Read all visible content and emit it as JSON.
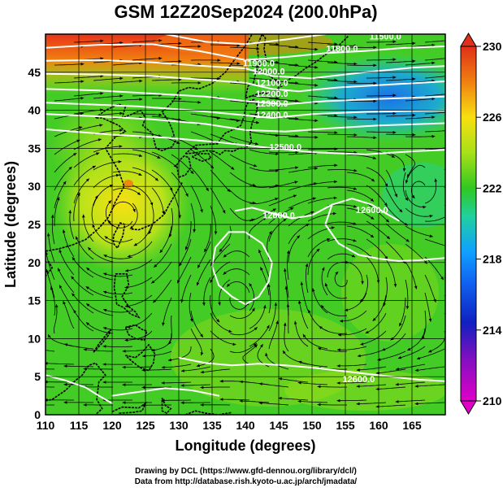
{
  "title": "GSM 12Z20Sep2024 (200.0hPa)",
  "x_axis": {
    "label": "Longitude (degrees)",
    "range": [
      110,
      170
    ],
    "ticks": [
      "110",
      "115",
      "120",
      "125",
      "130",
      "135",
      "140",
      "145",
      "150",
      "155",
      "160",
      "165"
    ]
  },
  "y_axis": {
    "label": "Latitude  (degrees)",
    "range": [
      0,
      50
    ],
    "ticks": [
      "0",
      "5",
      "10",
      "15",
      "20",
      "25",
      "30",
      "35",
      "40",
      "45"
    ]
  },
  "colorbar": {
    "range": [
      210,
      230
    ],
    "ticks": [
      "210",
      "214",
      "218",
      "222",
      "226",
      "230"
    ],
    "colors": [
      "#e000c8",
      "#1020c0",
      "#10a0ff",
      "#20d0a0",
      "#30c820",
      "#a8e018",
      "#f8e010",
      "#f08010",
      "#e03018"
    ]
  },
  "contour_labels": [
    {
      "text": "11500.0",
      "lon": 161,
      "lat": 49.3
    },
    {
      "text": "11800.0",
      "lon": 154.5,
      "lat": 47.7
    },
    {
      "text": "11900.0",
      "lon": 142,
      "lat": 45.8
    },
    {
      "text": "12000.0",
      "lon": 143.5,
      "lat": 44.7
    },
    {
      "text": "12100.0",
      "lon": 144,
      "lat": 43.2
    },
    {
      "text": "12200.0",
      "lon": 144,
      "lat": 41.8
    },
    {
      "text": "12300.0",
      "lon": 144,
      "lat": 40.5
    },
    {
      "text": "12400.0",
      "lon": 144,
      "lat": 39
    },
    {
      "text": "12500.0",
      "lon": 146,
      "lat": 34.8
    },
    {
      "text": "12600.0",
      "lon": 145,
      "lat": 25.8
    },
    {
      "text": "12600.0",
      "lon": 159,
      "lat": 26.5
    },
    {
      "text": "12600.0",
      "lon": 157,
      "lat": 4.3
    }
  ],
  "credits": [
    "Drawing by DCL (https://www.gfd-dennou.org/library/dcl/)",
    "Data from http://database.rish.kyoto-u.ac.jp/arch/jmadata/"
  ]
}
